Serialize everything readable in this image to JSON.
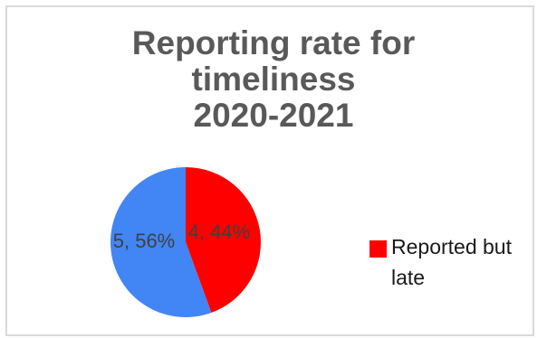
{
  "chart_data": {
    "type": "pie",
    "title_lines": [
      "Reporting rate for",
      "timeliness",
      "2020-2021"
    ],
    "slices": [
      {
        "name": "Reported but late",
        "value": 4,
        "percent": "44%",
        "label": "4, 44%",
        "color": "#ff0000"
      },
      {
        "name": "",
        "value": 5,
        "percent": "56%",
        "label": "5, 56%",
        "color": "#4285f4"
      }
    ],
    "legend": {
      "placement": "right",
      "entries": [
        {
          "label": "Reported but late",
          "color": "#ff0000"
        }
      ]
    }
  }
}
